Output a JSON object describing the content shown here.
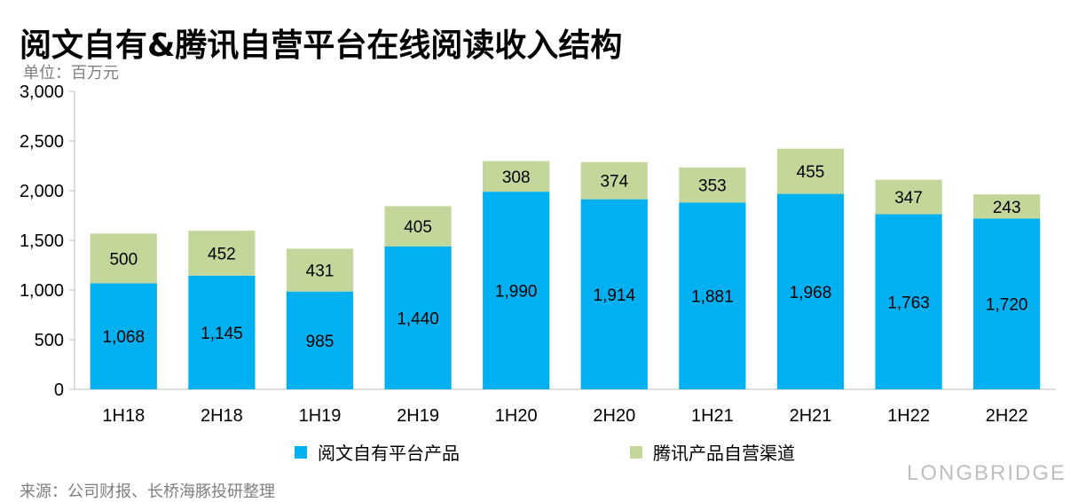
{
  "title": "阅文自有&腾讯自营平台在线阅读收入结构",
  "unit": "单位：百万元",
  "source": "来源：公司财报、长桥海豚投研整理",
  "watermark": "LONGBRIDGE",
  "chart_data": {
    "type": "bar",
    "stacked": true,
    "categories": [
      "1H18",
      "2H18",
      "1H19",
      "2H19",
      "1H20",
      "2H20",
      "1H21",
      "2H21",
      "1H22",
      "2H22"
    ],
    "series": [
      {
        "name": "阅文自有平台产品",
        "color": "#00b0f0",
        "values": [
          1068,
          1145,
          985,
          1440,
          1990,
          1914,
          1881,
          1968,
          1763,
          1720
        ],
        "labels": [
          "1,068",
          "1,145",
          "985",
          "1,440",
          "1,990",
          "1,914",
          "1,881",
          "1,968",
          "1,763",
          "1,720"
        ]
      },
      {
        "name": "腾讯产品自营渠道",
        "color": "#c4d79b",
        "values": [
          500,
          452,
          431,
          405,
          308,
          374,
          353,
          455,
          347,
          243
        ],
        "labels": [
          "500",
          "452",
          "431",
          "405",
          "308",
          "374",
          "353",
          "455",
          "347",
          "243"
        ]
      }
    ],
    "ylim": [
      0,
      3000
    ],
    "yticks": [
      0,
      500,
      1000,
      1500,
      2000,
      2500,
      3000
    ],
    "ytick_labels": [
      "0",
      "500",
      "1,000",
      "1,500",
      "2,000",
      "2,500",
      "3,000"
    ],
    "legend_position": "bottom",
    "grid": false
  }
}
